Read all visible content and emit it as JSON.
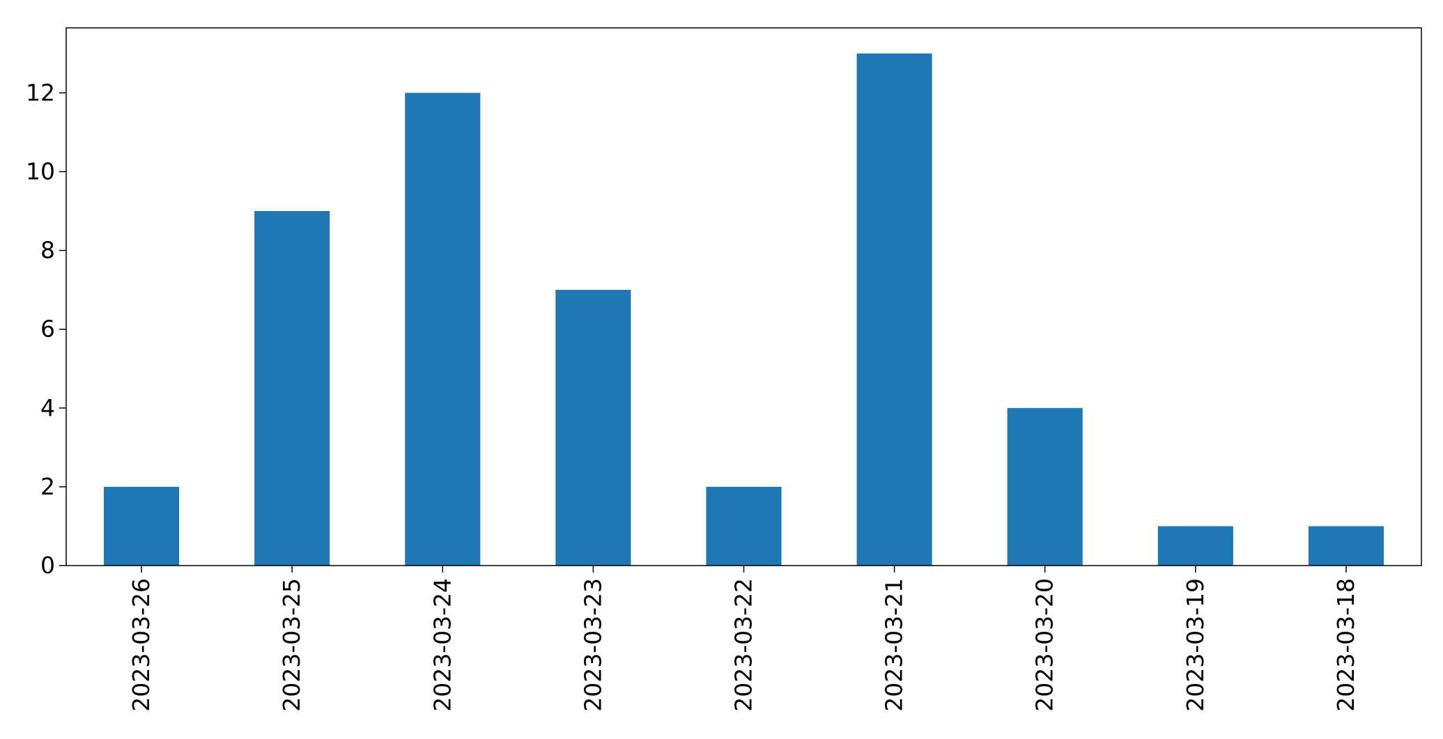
{
  "chart_data": {
    "type": "bar",
    "title": "",
    "xlabel": "",
    "ylabel": "",
    "categories": [
      "2023-03-26",
      "2023-03-25",
      "2023-03-24",
      "2023-03-23",
      "2023-03-22",
      "2023-03-21",
      "2023-03-20",
      "2023-03-19",
      "2023-03-18"
    ],
    "values": [
      2,
      9,
      12,
      7,
      2,
      13,
      4,
      1,
      1
    ],
    "ylim": [
      0,
      13.65
    ],
    "yticks": [
      0,
      2,
      4,
      6,
      8,
      10,
      12
    ],
    "grid": false,
    "legend": "none",
    "bar_color": "#1f77b4",
    "axis_color": "#000000"
  }
}
